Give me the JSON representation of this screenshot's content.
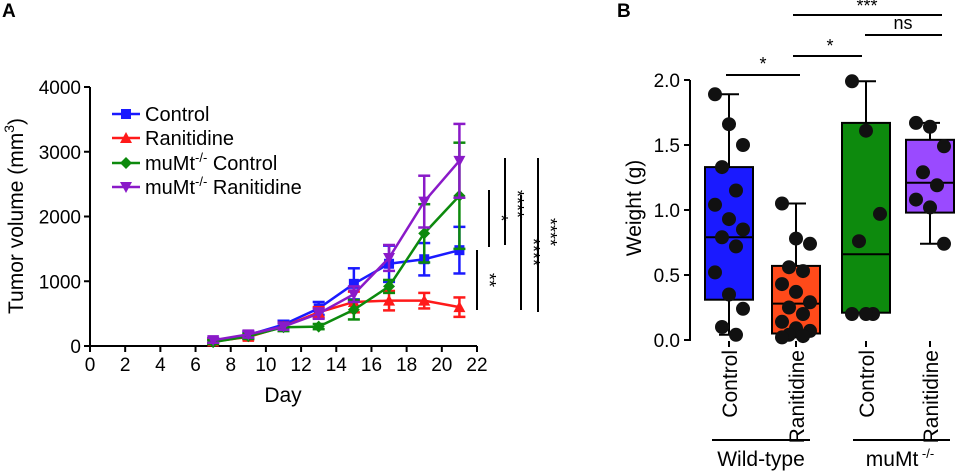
{
  "figure": {
    "panel_a_label": "A",
    "panel_b_label": "B",
    "colors": {
      "control": "#1a1aff",
      "ranitidine": "#ff1a1a",
      "mumt_control": "#0d8a0d",
      "mumt_ranitidine": "#8a1ac8",
      "box_ranitidine": "#ff4a1a",
      "box_mumt_ranitidine": "#9a4aff"
    }
  },
  "chart_data": [
    {
      "type": "line",
      "title": "",
      "xlabel": "Day",
      "ylabel_main": "Tumor volume (mm",
      "ylabel_sup": "3",
      "ylabel_end": ")",
      "xlim": [
        0,
        22
      ],
      "ylim": [
        0,
        4000
      ],
      "xticks": [
        "0",
        "2",
        "4",
        "6",
        "8",
        "10",
        "12",
        "14",
        "16",
        "18",
        "20",
        "22"
      ],
      "yticks": [
        "0",
        "1000",
        "2000",
        "3000",
        "4000"
      ],
      "x": [
        7,
        9,
        11,
        13,
        15,
        17,
        19,
        21
      ],
      "series": [
        {
          "name": "Control",
          "name_sup": "",
          "name_rest": "",
          "marker": "square",
          "color": "#1a1aff",
          "values": [
            80,
            170,
            330,
            580,
            960,
            1270,
            1340,
            1480
          ],
          "errors": [
            40,
            50,
            60,
            100,
            240,
            280,
            250,
            360
          ]
        },
        {
          "name": "Ranitidine",
          "name_sup": "",
          "name_rest": "",
          "marker": "triangle-up",
          "color": "#ff1a1a",
          "values": [
            70,
            140,
            300,
            520,
            680,
            700,
            700,
            600
          ],
          "errors": [
            30,
            40,
            60,
            80,
            160,
            150,
            120,
            150
          ]
        },
        {
          "name": "muMt",
          "name_sup": "-/-",
          "name_rest": " Control",
          "marker": "diamond",
          "color": "#0d8a0d",
          "values": [
            60,
            150,
            290,
            300,
            560,
            920,
            1740,
            2320
          ],
          "errors": [
            30,
            40,
            60,
            40,
            150,
            100,
            450,
            820
          ]
        },
        {
          "name": "muMt",
          "name_sup": "-/-",
          "name_rest": " Ranitidine",
          "marker": "triangle-down",
          "color": "#8a1ac8",
          "values": [
            90,
            180,
            300,
            500,
            800,
            1360,
            2230,
            2860
          ],
          "errors": [
            40,
            50,
            50,
            80,
            120,
            200,
            400,
            570
          ]
        }
      ],
      "significance": [
        "**",
        "*",
        "****",
        "****",
        "****"
      ]
    },
    {
      "type": "box",
      "title": "",
      "ylabel": "Weight (g)",
      "ylim": [
        0,
        2.0
      ],
      "yticks": [
        "0.0",
        "0.5",
        "1.0",
        "1.5",
        "2.0"
      ],
      "categories": [
        "Control",
        "Ranitidine",
        "Control",
        "Ranitidine"
      ],
      "groups": [
        {
          "label": "Wild-type",
          "sup": "",
          "members": [
            0,
            1
          ]
        },
        {
          "label": "muMt",
          "sup": " -/-",
          "members": [
            2,
            3
          ]
        }
      ],
      "boxes": [
        {
          "color": "#1a1aff",
          "min": 0.04,
          "q1": 0.31,
          "median": 0.79,
          "q3": 1.33,
          "max": 1.89,
          "points": [
            1.89,
            1.66,
            1.5,
            1.33,
            1.15,
            1.04,
            0.93,
            0.85,
            0.79,
            0.72,
            0.52,
            0.35,
            0.24,
            0.1,
            0.04
          ]
        },
        {
          "color": "#ff4a1a",
          "min": 0.02,
          "q1": 0.05,
          "median": 0.28,
          "q3": 0.57,
          "max": 1.05,
          "points": [
            1.05,
            0.78,
            0.74,
            0.56,
            0.53,
            0.43,
            0.37,
            0.29,
            0.25,
            0.2,
            0.14,
            0.09,
            0.07,
            0.04,
            0.03,
            0.02
          ]
        },
        {
          "color": "#0d8a0d",
          "min": 0.21,
          "q1": 0.21,
          "median": 0.66,
          "q3": 1.67,
          "max": 1.99,
          "points": [
            1.99,
            1.61,
            0.97,
            0.76,
            0.2,
            0.2,
            0.2
          ]
        },
        {
          "color": "#9a4aff",
          "min": 0.74,
          "q1": 0.98,
          "median": 1.21,
          "q3": 1.54,
          "max": 1.67,
          "points": [
            1.67,
            1.64,
            1.49,
            1.29,
            1.19,
            1.08,
            1.02,
            0.74
          ]
        }
      ],
      "comparisons": [
        {
          "label": "*",
          "from": 0,
          "to": 1
        },
        {
          "label": "*",
          "from": 1,
          "to": 2
        },
        {
          "label": "ns",
          "from": 2,
          "to": 3
        },
        {
          "label": "***",
          "from": 1,
          "to": 3
        }
      ]
    }
  ]
}
